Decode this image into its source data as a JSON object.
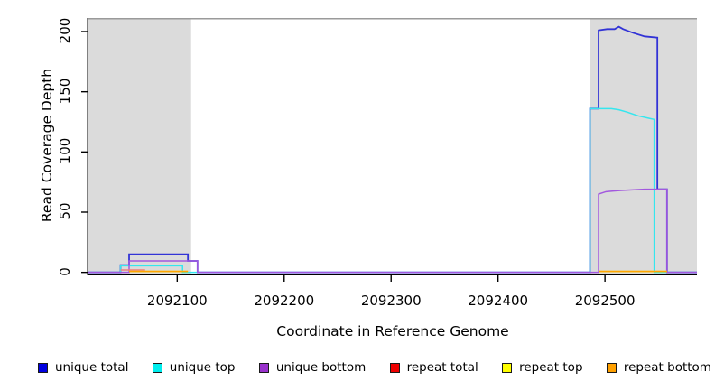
{
  "chart_data": {
    "type": "line",
    "title": "",
    "xlabel": "Coordinate in Reference Genome",
    "ylabel": "Read Coverage Depth",
    "xlim": [
      2092017,
      2092586
    ],
    "ylim": [
      -2.5,
      211.25
    ],
    "grid": false,
    "legend_position": "bottom",
    "axis_color": "#000000",
    "top_border_color": "#9a9a9a",
    "shade_color": "#dbdbdb",
    "xticks": [
      {
        "value": 2092100,
        "label": "2092100"
      },
      {
        "value": 2092200,
        "label": "2092200"
      },
      {
        "value": 2092300,
        "label": "2092300"
      },
      {
        "value": 2092400,
        "label": "2092400"
      },
      {
        "value": 2092500,
        "label": "2092500"
      }
    ],
    "yticks": [
      {
        "value": 0,
        "label": "0"
      },
      {
        "value": 50,
        "label": "50"
      },
      {
        "value": 100,
        "label": "100"
      },
      {
        "value": 150,
        "label": "150"
      },
      {
        "value": 200,
        "label": "200"
      }
    ],
    "shaded_regions": [
      {
        "x0": 2092017,
        "x1": 2092113
      },
      {
        "x0": 2092486,
        "x1": 2092586
      }
    ],
    "series": [
      {
        "name": "unique total",
        "color": "#3233d6",
        "width": 1.8,
        "segments": [
          [
            [
              2092017,
              0
            ],
            [
              2092047,
              0
            ],
            [
              2092047,
              6
            ],
            [
              2092055,
              6
            ],
            [
              2092055,
              15
            ],
            [
              2092110,
              15
            ],
            [
              2092110,
              9.5
            ],
            [
              2092119,
              9.5
            ],
            [
              2092119,
              0
            ],
            [
              2092486,
              0
            ],
            [
              2092486,
              136
            ],
            [
              2092494,
              136
            ],
            [
              2092494,
              201
            ],
            [
              2092502,
              202
            ],
            [
              2092509,
              202
            ],
            [
              2092513,
              204
            ],
            [
              2092517,
              202
            ],
            [
              2092526,
              199
            ],
            [
              2092537,
              196
            ],
            [
              2092549,
              195
            ],
            [
              2092549,
              69
            ],
            [
              2092558,
              69
            ],
            [
              2092558,
              0
            ],
            [
              2092586,
              0
            ]
          ]
        ]
      },
      {
        "name": "unique top",
        "color": "#35e6ee",
        "width": 1.5,
        "segments": [
          [
            [
              2092017,
              0
            ],
            [
              2092047,
              0
            ],
            [
              2092047,
              5.5
            ],
            [
              2092105,
              5.5
            ],
            [
              2092105,
              0
            ],
            [
              2092486,
              0
            ],
            [
              2092486,
              136
            ],
            [
              2092506,
              136
            ],
            [
              2092513,
              135
            ],
            [
              2092521,
              133
            ],
            [
              2092531,
              130
            ],
            [
              2092541,
              128
            ],
            [
              2092546,
              127
            ],
            [
              2092546,
              0
            ],
            [
              2092586,
              0
            ]
          ]
        ]
      },
      {
        "name": "unique bottom",
        "color": "#a258de",
        "width": 1.5,
        "segments": [
          [
            [
              2092017,
              0
            ],
            [
              2092055,
              0
            ],
            [
              2092055,
              9.5
            ],
            [
              2092119,
              9.5
            ],
            [
              2092119,
              0
            ],
            [
              2092494,
              0
            ],
            [
              2092494,
              65
            ],
            [
              2092501,
              67
            ],
            [
              2092508,
              67.5
            ],
            [
              2092515,
              68
            ],
            [
              2092525,
              68.5
            ],
            [
              2092537,
              69
            ],
            [
              2092558,
              69
            ],
            [
              2092558,
              0
            ],
            [
              2092586,
              0
            ]
          ]
        ]
      },
      {
        "name": "repeat total",
        "color": "#ec8080",
        "width": 1.5,
        "segments": [
          [
            [
              2092047,
              2
            ],
            [
              2092070,
              2
            ]
          ]
        ]
      },
      {
        "name": "repeat top",
        "color": "#ffff00",
        "width": 1.5,
        "segments": [
          [
            [
              2092055,
              0.8
            ],
            [
              2092110,
              0.8
            ]
          ],
          [
            [
              2092494,
              0.8
            ],
            [
              2092558,
              0.8
            ]
          ]
        ]
      },
      {
        "name": "repeat bottom",
        "color": "#ffa500",
        "width": 1.6,
        "segments": [
          [
            [
              2092055,
              0.8
            ],
            [
              2092110,
              0.8
            ]
          ],
          [
            [
              2092494,
              0.8
            ],
            [
              2092558,
              0.8
            ]
          ]
        ]
      }
    ],
    "legend": [
      {
        "label": "unique total",
        "color": "#0000e0"
      },
      {
        "label": "unique top",
        "color": "#00eeee"
      },
      {
        "label": "unique bottom",
        "color": "#9932cc"
      },
      {
        "label": "repeat total",
        "color": "#ee0000"
      },
      {
        "label": "repeat top",
        "color": "#ffff00"
      },
      {
        "label": "repeat bottom",
        "color": "#ffa000"
      }
    ]
  }
}
